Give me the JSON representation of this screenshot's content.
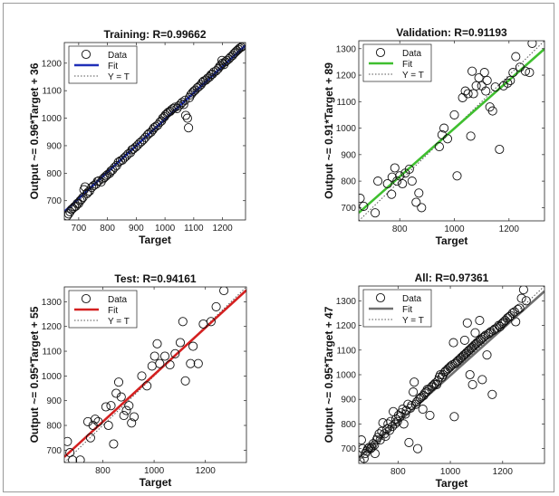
{
  "chart_data": [
    {
      "type": "scatter",
      "title": "Training: R=0.99662",
      "xlabel": "Target",
      "ylabel": "Output ~= 0.96*Target + 36",
      "xlim": [
        650,
        1280
      ],
      "ylim": [
        630,
        1275
      ],
      "xticks": [
        700,
        800,
        900,
        1000,
        1100,
        1200
      ],
      "yticks": [
        700,
        800,
        900,
        1000,
        1100,
        1200
      ],
      "fit": {
        "slope": 0.96,
        "intercept": 36
      },
      "fit_color": "#1f2fb8",
      "legend": [
        "Data",
        "Fit",
        "Y = T"
      ],
      "legend_position": "top-left",
      "grid": false,
      "points": [
        [
          660,
          645
        ],
        [
          665,
          652
        ],
        [
          670,
          660
        ],
        [
          675,
          668
        ],
        [
          680,
          672
        ],
        [
          685,
          678
        ],
        [
          690,
          680
        ],
        [
          695,
          690
        ],
        [
          700,
          690
        ],
        [
          705,
          700
        ],
        [
          710,
          705
        ],
        [
          715,
          712
        ],
        [
          718,
          740
        ],
        [
          722,
          750
        ],
        [
          728,
          725
        ],
        [
          732,
          730
        ],
        [
          738,
          735
        ],
        [
          745,
          748
        ],
        [
          752,
          755
        ],
        [
          760,
          760
        ],
        [
          765,
          770
        ],
        [
          770,
          772
        ],
        [
          778,
          768
        ],
        [
          785,
          780
        ],
        [
          790,
          785
        ],
        [
          795,
          790
        ],
        [
          800,
          795
        ],
        [
          808,
          800
        ],
        [
          812,
          808
        ],
        [
          818,
          812
        ],
        [
          825,
          822
        ],
        [
          832,
          828
        ],
        [
          838,
          840
        ],
        [
          845,
          845
        ],
        [
          852,
          848
        ],
        [
          858,
          855
        ],
        [
          865,
          862
        ],
        [
          872,
          870
        ],
        [
          880,
          875
        ],
        [
          885,
          885
        ],
        [
          890,
          888
        ],
        [
          898,
          895
        ],
        [
          905,
          902
        ],
        [
          912,
          910
        ],
        [
          918,
          915
        ],
        [
          925,
          922
        ],
        [
          932,
          930
        ],
        [
          940,
          940
        ],
        [
          945,
          945
        ],
        [
          952,
          950
        ],
        [
          958,
          958
        ],
        [
          962,
          965
        ],
        [
          968,
          970
        ],
        [
          975,
          975
        ],
        [
          982,
          985
        ],
        [
          988,
          990
        ],
        [
          992,
          1000
        ],
        [
          998,
          1005
        ],
        [
          1002,
          1012
        ],
        [
          1008,
          1018
        ],
        [
          1012,
          1022
        ],
        [
          1018,
          1025
        ],
        [
          1022,
          1030
        ],
        [
          1028,
          1035
        ],
        [
          1035,
          1040
        ],
        [
          1042,
          1035
        ],
        [
          1048,
          1045
        ],
        [
          1055,
          1052
        ],
        [
          1060,
          1058
        ],
        [
          1065,
          1050
        ],
        [
          1070,
          1065
        ],
        [
          1072,
          1010
        ],
        [
          1078,
          1000
        ],
        [
          1082,
          965
        ],
        [
          1085,
          1075
        ],
        [
          1090,
          1085
        ],
        [
          1095,
          1092
        ],
        [
          1100,
          1098
        ],
        [
          1105,
          1102
        ],
        [
          1112,
          1110
        ],
        [
          1118,
          1115
        ],
        [
          1125,
          1122
        ],
        [
          1130,
          1130
        ],
        [
          1135,
          1135
        ],
        [
          1142,
          1138
        ],
        [
          1148,
          1145
        ],
        [
          1155,
          1150
        ],
        [
          1160,
          1158
        ],
        [
          1165,
          1160
        ],
        [
          1170,
          1168
        ],
        [
          1178,
          1172
        ],
        [
          1185,
          1180
        ],
        [
          1190,
          1188
        ],
        [
          1195,
          1192
        ],
        [
          1198,
          1210
        ],
        [
          1200,
          1200
        ],
        [
          1205,
          1195
        ],
        [
          1210,
          1205
        ],
        [
          1215,
          1210
        ],
        [
          1222,
          1215
        ],
        [
          1228,
          1222
        ],
        [
          1235,
          1228
        ],
        [
          1240,
          1235
        ],
        [
          1245,
          1240
        ],
        [
          1250,
          1245
        ],
        [
          1255,
          1250
        ],
        [
          1260,
          1255
        ],
        [
          1265,
          1258
        ],
        [
          1270,
          1262
        ]
      ]
    },
    {
      "type": "scatter",
      "title": "Validation: R=0.91193",
      "xlabel": "Target",
      "ylabel": "Output ~= 0.91*Target + 89",
      "xlim": [
        650,
        1330
      ],
      "ylim": [
        650,
        1330
      ],
      "xticks": [
        800,
        1000,
        1200
      ],
      "yticks": [
        700,
        800,
        900,
        1000,
        1100,
        1200,
        1300
      ],
      "fit": {
        "slope": 0.91,
        "intercept": 89
      },
      "fit_color": "#3fbf2f",
      "legend": [
        "Data",
        "Fit",
        "Y = T"
      ],
      "legend_position": "top-left",
      "grid": false,
      "points": [
        [
          655,
          735
        ],
        [
          668,
          705
        ],
        [
          710,
          680
        ],
        [
          720,
          800
        ],
        [
          755,
          790
        ],
        [
          770,
          750
        ],
        [
          772,
          815
        ],
        [
          782,
          850
        ],
        [
          790,
          800
        ],
        [
          800,
          820
        ],
        [
          810,
          790
        ],
        [
          820,
          830
        ],
        [
          835,
          845
        ],
        [
          845,
          800
        ],
        [
          860,
          720
        ],
        [
          870,
          755
        ],
        [
          880,
          700
        ],
        [
          945,
          930
        ],
        [
          955,
          975
        ],
        [
          962,
          1000
        ],
        [
          975,
          960
        ],
        [
          1000,
          1050
        ],
        [
          1010,
          820
        ],
        [
          1030,
          1115
        ],
        [
          1040,
          1140
        ],
        [
          1050,
          1130
        ],
        [
          1060,
          970
        ],
        [
          1065,
          1215
        ],
        [
          1070,
          1130
        ],
        [
          1080,
          1160
        ],
        [
          1090,
          1190
        ],
        [
          1100,
          1160
        ],
        [
          1110,
          1210
        ],
        [
          1115,
          1140
        ],
        [
          1120,
          1180
        ],
        [
          1130,
          1080
        ],
        [
          1140,
          1065
        ],
        [
          1150,
          1155
        ],
        [
          1165,
          920
        ],
        [
          1180,
          1160
        ],
        [
          1195,
          1170
        ],
        [
          1205,
          1180
        ],
        [
          1215,
          1210
        ],
        [
          1225,
          1270
        ],
        [
          1240,
          1230
        ],
        [
          1260,
          1215
        ],
        [
          1275,
          1210
        ],
        [
          1285,
          1320
        ]
      ]
    },
    {
      "type": "scatter",
      "title": "Test: R=0.94161",
      "xlabel": "Target",
      "ylabel": "Output ~= 0.95*Target + 55",
      "xlim": [
        650,
        1360
      ],
      "ylim": [
        650,
        1360
      ],
      "xticks": [
        800,
        1000,
        1200
      ],
      "yticks": [
        700,
        800,
        900,
        1000,
        1100,
        1200,
        1300
      ],
      "fit": {
        "slope": 0.95,
        "intercept": 55
      },
      "fit_color": "#d42020",
      "legend": [
        "Data",
        "Fit",
        "Y = T"
      ],
      "legend_position": "top-left",
      "grid": false,
      "points": [
        [
          662,
          735
        ],
        [
          672,
          690
        ],
        [
          682,
          660
        ],
        [
          712,
          660
        ],
        [
          742,
          815
        ],
        [
          752,
          750
        ],
        [
          762,
          800
        ],
        [
          770,
          825
        ],
        [
          782,
          815
        ],
        [
          812,
          875
        ],
        [
          822,
          800
        ],
        [
          832,
          880
        ],
        [
          842,
          725
        ],
        [
          852,
          930
        ],
        [
          862,
          975
        ],
        [
          872,
          915
        ],
        [
          882,
          840
        ],
        [
          892,
          860
        ],
        [
          902,
          880
        ],
        [
          912,
          810
        ],
        [
          922,
          835
        ],
        [
          952,
          1000
        ],
        [
          972,
          960
        ],
        [
          992,
          1040
        ],
        [
          1002,
          1080
        ],
        [
          1012,
          1130
        ],
        [
          1022,
          1050
        ],
        [
          1042,
          1080
        ],
        [
          1062,
          1045
        ],
        [
          1082,
          1090
        ],
        [
          1102,
          1135
        ],
        [
          1112,
          1220
        ],
        [
          1122,
          980
        ],
        [
          1142,
          1050
        ],
        [
          1152,
          1120
        ],
        [
          1172,
          1050
        ],
        [
          1192,
          1210
        ],
        [
          1222,
          1220
        ],
        [
          1242,
          1280
        ],
        [
          1272,
          1345
        ]
      ]
    },
    {
      "type": "scatter",
      "title": "All: R=0.97361",
      "xlabel": "Target",
      "ylabel": "Output ~= 0.95*Target + 47",
      "xlim": [
        650,
        1360
      ],
      "ylim": [
        640,
        1360
      ],
      "xticks": [
        800,
        1000,
        1200
      ],
      "yticks": [
        700,
        800,
        900,
        1000,
        1100,
        1200,
        1300
      ],
      "fit": {
        "slope": 0.95,
        "intercept": 47
      },
      "fit_color": "#707070",
      "legend": [
        "Data",
        "Fit",
        "Y = T"
      ],
      "legend_position": "top-left",
      "grid": false,
      "points": [
        [
          655,
          650
        ],
        [
          660,
          735
        ],
        [
          665,
          700
        ],
        [
          670,
          660
        ],
        [
          675,
          680
        ],
        [
          680,
          690
        ],
        [
          685,
          700
        ],
        [
          690,
          705
        ],
        [
          695,
          700
        ],
        [
          700,
          705
        ],
        [
          705,
          720
        ],
        [
          710,
          715
        ],
        [
          712,
          680
        ],
        [
          718,
          735
        ],
        [
          722,
          745
        ],
        [
          728,
          760
        ],
        [
          732,
          735
        ],
        [
          738,
          770
        ],
        [
          742,
          805
        ],
        [
          748,
          760
        ],
        [
          752,
          750
        ],
        [
          758,
          780
        ],
        [
          762,
          800
        ],
        [
          768,
          775
        ],
        [
          772,
          810
        ],
        [
          778,
          790
        ],
        [
          782,
          850
        ],
        [
          788,
          800
        ],
        [
          792,
          820
        ],
        [
          798,
          810
        ],
        [
          802,
          835
        ],
        [
          808,
          830
        ],
        [
          812,
          845
        ],
        [
          818,
          860
        ],
        [
          822,
          800
        ],
        [
          828,
          840
        ],
        [
          832,
          855
        ],
        [
          838,
          880
        ],
        [
          842,
          725
        ],
        [
          848,
          865
        ],
        [
          852,
          875
        ],
        [
          858,
          930
        ],
        [
          862,
          970
        ],
        [
          868,
          880
        ],
        [
          872,
          890
        ],
        [
          875,
          700
        ],
        [
          880,
          900
        ],
        [
          885,
          905
        ],
        [
          890,
          910
        ],
        [
          895,
          860
        ],
        [
          898,
          915
        ],
        [
          902,
          925
        ],
        [
          908,
          930
        ],
        [
          912,
          940
        ],
        [
          918,
          940
        ],
        [
          922,
          835
        ],
        [
          928,
          950
        ],
        [
          932,
          955
        ],
        [
          938,
          960
        ],
        [
          942,
          965
        ],
        [
          948,
          960
        ],
        [
          952,
          975
        ],
        [
          958,
          990
        ],
        [
          962,
          1000
        ],
        [
          968,
          990
        ],
        [
          972,
          1000
        ],
        [
          978,
          1010
        ],
        [
          982,
          1015
        ],
        [
          988,
          1020
        ],
        [
          992,
          1025
        ],
        [
          998,
          1030
        ],
        [
          1002,
          1035
        ],
        [
          1008,
          1040
        ],
        [
          1012,
          1130
        ],
        [
          1015,
          830
        ],
        [
          1018,
          1045
        ],
        [
          1022,
          1050
        ],
        [
          1028,
          1055
        ],
        [
          1032,
          1060
        ],
        [
          1038,
          1065
        ],
        [
          1042,
          1070
        ],
        [
          1048,
          1075
        ],
        [
          1052,
          1080
        ],
        [
          1055,
          1140
        ],
        [
          1058,
          1085
        ],
        [
          1062,
          1090
        ],
        [
          1065,
          1210
        ],
        [
          1068,
          1095
        ],
        [
          1072,
          1100
        ],
        [
          1075,
          1000
        ],
        [
          1078,
          1105
        ],
        [
          1082,
          1110
        ],
        [
          1085,
          960
        ],
        [
          1088,
          1115
        ],
        [
          1092,
          1120
        ],
        [
          1095,
          1170
        ],
        [
          1098,
          1125
        ],
        [
          1102,
          1130
        ],
        [
          1108,
          1135
        ],
        [
          1112,
          1220
        ],
        [
          1115,
          1140
        ],
        [
          1118,
          1145
        ],
        [
          1122,
          980
        ],
        [
          1125,
          1150
        ],
        [
          1130,
          1155
        ],
        [
          1135,
          1160
        ],
        [
          1140,
          1080
        ],
        [
          1145,
          1165
        ],
        [
          1150,
          1170
        ],
        [
          1155,
          1175
        ],
        [
          1160,
          920
        ],
        [
          1165,
          1180
        ],
        [
          1170,
          1185
        ],
        [
          1178,
          1190
        ],
        [
          1185,
          1200
        ],
        [
          1190,
          1195
        ],
        [
          1195,
          1205
        ],
        [
          1200,
          1210
        ],
        [
          1205,
          1215
        ],
        [
          1210,
          1220
        ],
        [
          1218,
          1230
        ],
        [
          1225,
          1235
        ],
        [
          1230,
          1240
        ],
        [
          1238,
          1250
        ],
        [
          1245,
          1255
        ],
        [
          1250,
          1215
        ],
        [
          1258,
          1265
        ],
        [
          1265,
          1270
        ],
        [
          1272,
          1310
        ],
        [
          1280,
          1345
        ],
        [
          1290,
          1300
        ]
      ]
    }
  ]
}
